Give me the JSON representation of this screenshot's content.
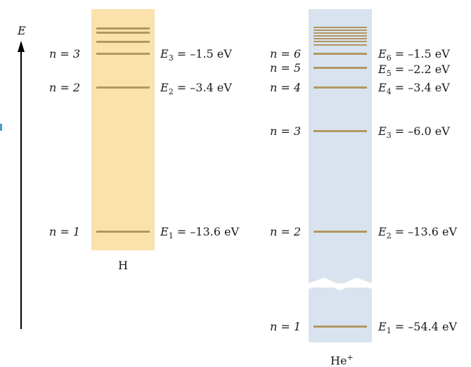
{
  "colors": {
    "hydrogen_band": "#fbe2ad",
    "helium_band": "#d8e3ef",
    "level_line": "#b39760",
    "arrow": "#000000",
    "edge_mark": "#4a9ccf"
  },
  "axis": {
    "symbol": "E"
  },
  "hydrogen": {
    "label": "H",
    "levels": [
      {
        "n_label": "n = 3",
        "energy_sym": "E",
        "energy_sub": "3",
        "energy_val": " = –1.5 eV"
      },
      {
        "n_label": "n = 2",
        "energy_sym": "E",
        "energy_sub": "2",
        "energy_val": " = –3.4 eV"
      },
      {
        "n_label": "n = 1",
        "energy_sym": "E",
        "energy_sub": "1",
        "energy_val": " = –13.6 eV"
      }
    ]
  },
  "helium": {
    "label": "He",
    "label_sup": "+",
    "levels": [
      {
        "n_label": "n = 6",
        "energy_sym": "E",
        "energy_sub": "6",
        "energy_val": " = –1.5 eV"
      },
      {
        "n_label": "n = 5",
        "energy_sym": "E",
        "energy_sub": "5",
        "energy_val": " = –2.2 eV"
      },
      {
        "n_label": "n = 4",
        "energy_sym": "E",
        "energy_sub": "4",
        "energy_val": " = –3.4 eV"
      },
      {
        "n_label": "n = 3",
        "energy_sym": "E",
        "energy_sub": "3",
        "energy_val": " = –6.0 eV"
      },
      {
        "n_label": "n = 2",
        "energy_sym": "E",
        "energy_sub": "2",
        "energy_val": " = –13.6 eV"
      },
      {
        "n_label": "n = 1",
        "energy_sym": "E",
        "energy_sub": "1",
        "energy_val": " = –54.4 eV"
      }
    ]
  }
}
